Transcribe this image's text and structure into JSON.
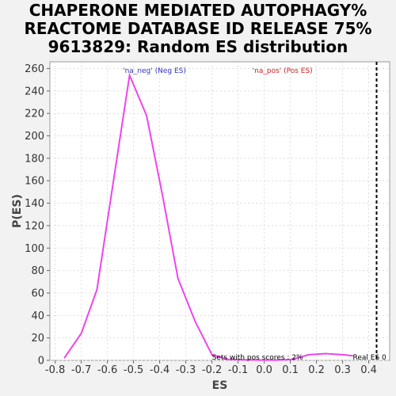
{
  "title_lines": [
    "CHAPERONE MEDIATED AUTOPHAGY%",
    "REACTOME DATABASE ID RELEASE 75%",
    "9613829: Random ES distribution"
  ],
  "chart_data": {
    "type": "line",
    "title": "CHAPERONE MEDIATED AUTOPHAGY% REACTOME DATABASE ID RELEASE 75% 9613829: Random ES distribution",
    "xlabel": "ES",
    "ylabel": "P(ES)",
    "xlim": [
      -0.82,
      0.48
    ],
    "ylim": [
      0,
      266
    ],
    "xticks": [
      -0.8,
      -0.7,
      -0.6,
      -0.5,
      -0.4,
      -0.3,
      -0.2,
      -0.1,
      0.0,
      0.1,
      0.2,
      0.3,
      0.4
    ],
    "xtick_labels": [
      "-0.8",
      "-0.7",
      "-0.6",
      "-0.5",
      "-0.4",
      "-0.3",
      "-0.2",
      "-0.1",
      "0.0",
      "0.1",
      "0.2",
      "0.3",
      "0.4"
    ],
    "yticks": [
      0,
      20,
      40,
      60,
      80,
      100,
      120,
      140,
      160,
      180,
      200,
      220,
      240,
      260
    ],
    "ytick_labels": [
      "0",
      "20",
      "40",
      "60",
      "80",
      "100",
      "120",
      "140",
      "160",
      "180",
      "200",
      "220",
      "240",
      "260"
    ],
    "grid": true,
    "series": [
      {
        "color": "#ee44ee",
        "x": [
          -0.765,
          -0.7,
          -0.64,
          -0.58,
          -0.515,
          -0.45,
          -0.39,
          -0.33,
          -0.265,
          -0.2,
          -0.14,
          -0.08,
          -0.015,
          0.05,
          0.11,
          0.17,
          0.235,
          0.3,
          0.34
        ],
        "y": [
          2,
          24,
          63,
          155,
          254,
          218,
          148,
          73,
          35,
          5,
          1,
          0.5,
          0.3,
          0.3,
          1,
          5,
          6,
          5,
          4
        ]
      }
    ],
    "annotations": {
      "neg_label": "'na_neg' (Neg ES)",
      "pos_label": "'na_pos' (Pos ES)",
      "pos_scores_note": "Sets with pos scores : 2%",
      "real_es_label": "Real ES 0",
      "real_es_value": 0.43
    },
    "colors": {
      "line": "#ee44ee",
      "neg_label": "#3333bb",
      "pos_label": "#cc2222",
      "real_es_line": "#000000"
    }
  }
}
